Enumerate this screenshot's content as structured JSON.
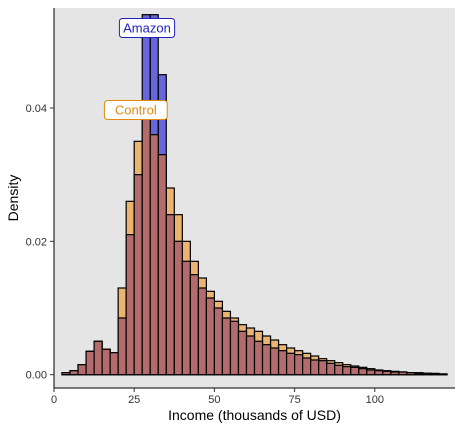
{
  "chart_data": {
    "type": "bar",
    "subtype": "overlapping-histogram",
    "title": "",
    "xlabel": "Income (thousands of USD)",
    "ylabel": "Density",
    "xlim": [
      0,
      125
    ],
    "ylim": [
      -0.002,
      0.055
    ],
    "x_ticks": [
      0,
      25,
      50,
      75,
      100
    ],
    "x_tick_labels": [
      "0",
      "25",
      "50",
      "75",
      "100"
    ],
    "y_ticks": [
      0.0,
      0.02,
      0.04
    ],
    "y_tick_labels": [
      "0.00",
      "0.02",
      "0.04"
    ],
    "grid": false,
    "panel_background": "#e5e5e5",
    "bin_width": 2.5,
    "bin_starts": [
      2.5,
      5,
      7.5,
      10,
      12.5,
      15,
      17.5,
      20,
      22.5,
      25,
      27.5,
      30,
      32.5,
      35,
      37.5,
      40,
      42.5,
      45,
      47.5,
      50,
      52.5,
      55,
      57.5,
      60,
      62.5,
      65,
      67.5,
      70,
      72.5,
      75,
      77.5,
      80,
      82.5,
      85,
      87.5,
      90,
      92.5,
      95,
      97.5,
      100,
      102.5,
      105,
      107.5,
      110,
      112.5,
      115,
      117.5,
      120
    ],
    "series": [
      {
        "name": "Amazon",
        "color": "#3b3bd9",
        "label_color": "#2222bb",
        "values": [
          0.0003,
          0.0006,
          0.0015,
          0.0035,
          0.005,
          0.0038,
          0.0033,
          0.0085,
          0.021,
          0.03,
          0.054,
          0.054,
          0.045,
          0.024,
          0.02,
          0.017,
          0.015,
          0.013,
          0.0115,
          0.01,
          0.0085,
          0.008,
          0.0065,
          0.0058,
          0.005,
          0.0045,
          0.004,
          0.0036,
          0.0032,
          0.003,
          0.0025,
          0.0022,
          0.0021,
          0.0017,
          0.0014,
          0.0012,
          0.0011,
          0.0009,
          0.0007,
          0.0006,
          0.0005,
          0.0004,
          0.0004,
          0.0003,
          0.0002,
          0.0002,
          0.0001,
          0.0001
        ]
      },
      {
        "name": "Control",
        "color": "#f0a040",
        "label_color": "#e08a10",
        "values": [
          0.0003,
          0.0006,
          0.0015,
          0.0035,
          0.005,
          0.0038,
          0.0033,
          0.013,
          0.026,
          0.035,
          0.04,
          0.036,
          0.033,
          0.028,
          0.024,
          0.02,
          0.017,
          0.0145,
          0.0125,
          0.011,
          0.0095,
          0.0085,
          0.0075,
          0.007,
          0.0065,
          0.0058,
          0.0052,
          0.0045,
          0.004,
          0.0036,
          0.0032,
          0.0028,
          0.0024,
          0.0021,
          0.0018,
          0.0015,
          0.0013,
          0.0011,
          0.0009,
          0.0007,
          0.0006,
          0.0005,
          0.0004,
          0.0003,
          0.0003,
          0.0002,
          0.0002,
          0.0001
        ]
      }
    ],
    "annotations": [
      {
        "text": "Amazon",
        "series": "Amazon",
        "x": 29,
        "y": 0.052
      },
      {
        "text": "Control",
        "series": "Control",
        "x": 25.5,
        "y": 0.0397
      }
    ],
    "overlap_color": "#b36b6b"
  }
}
